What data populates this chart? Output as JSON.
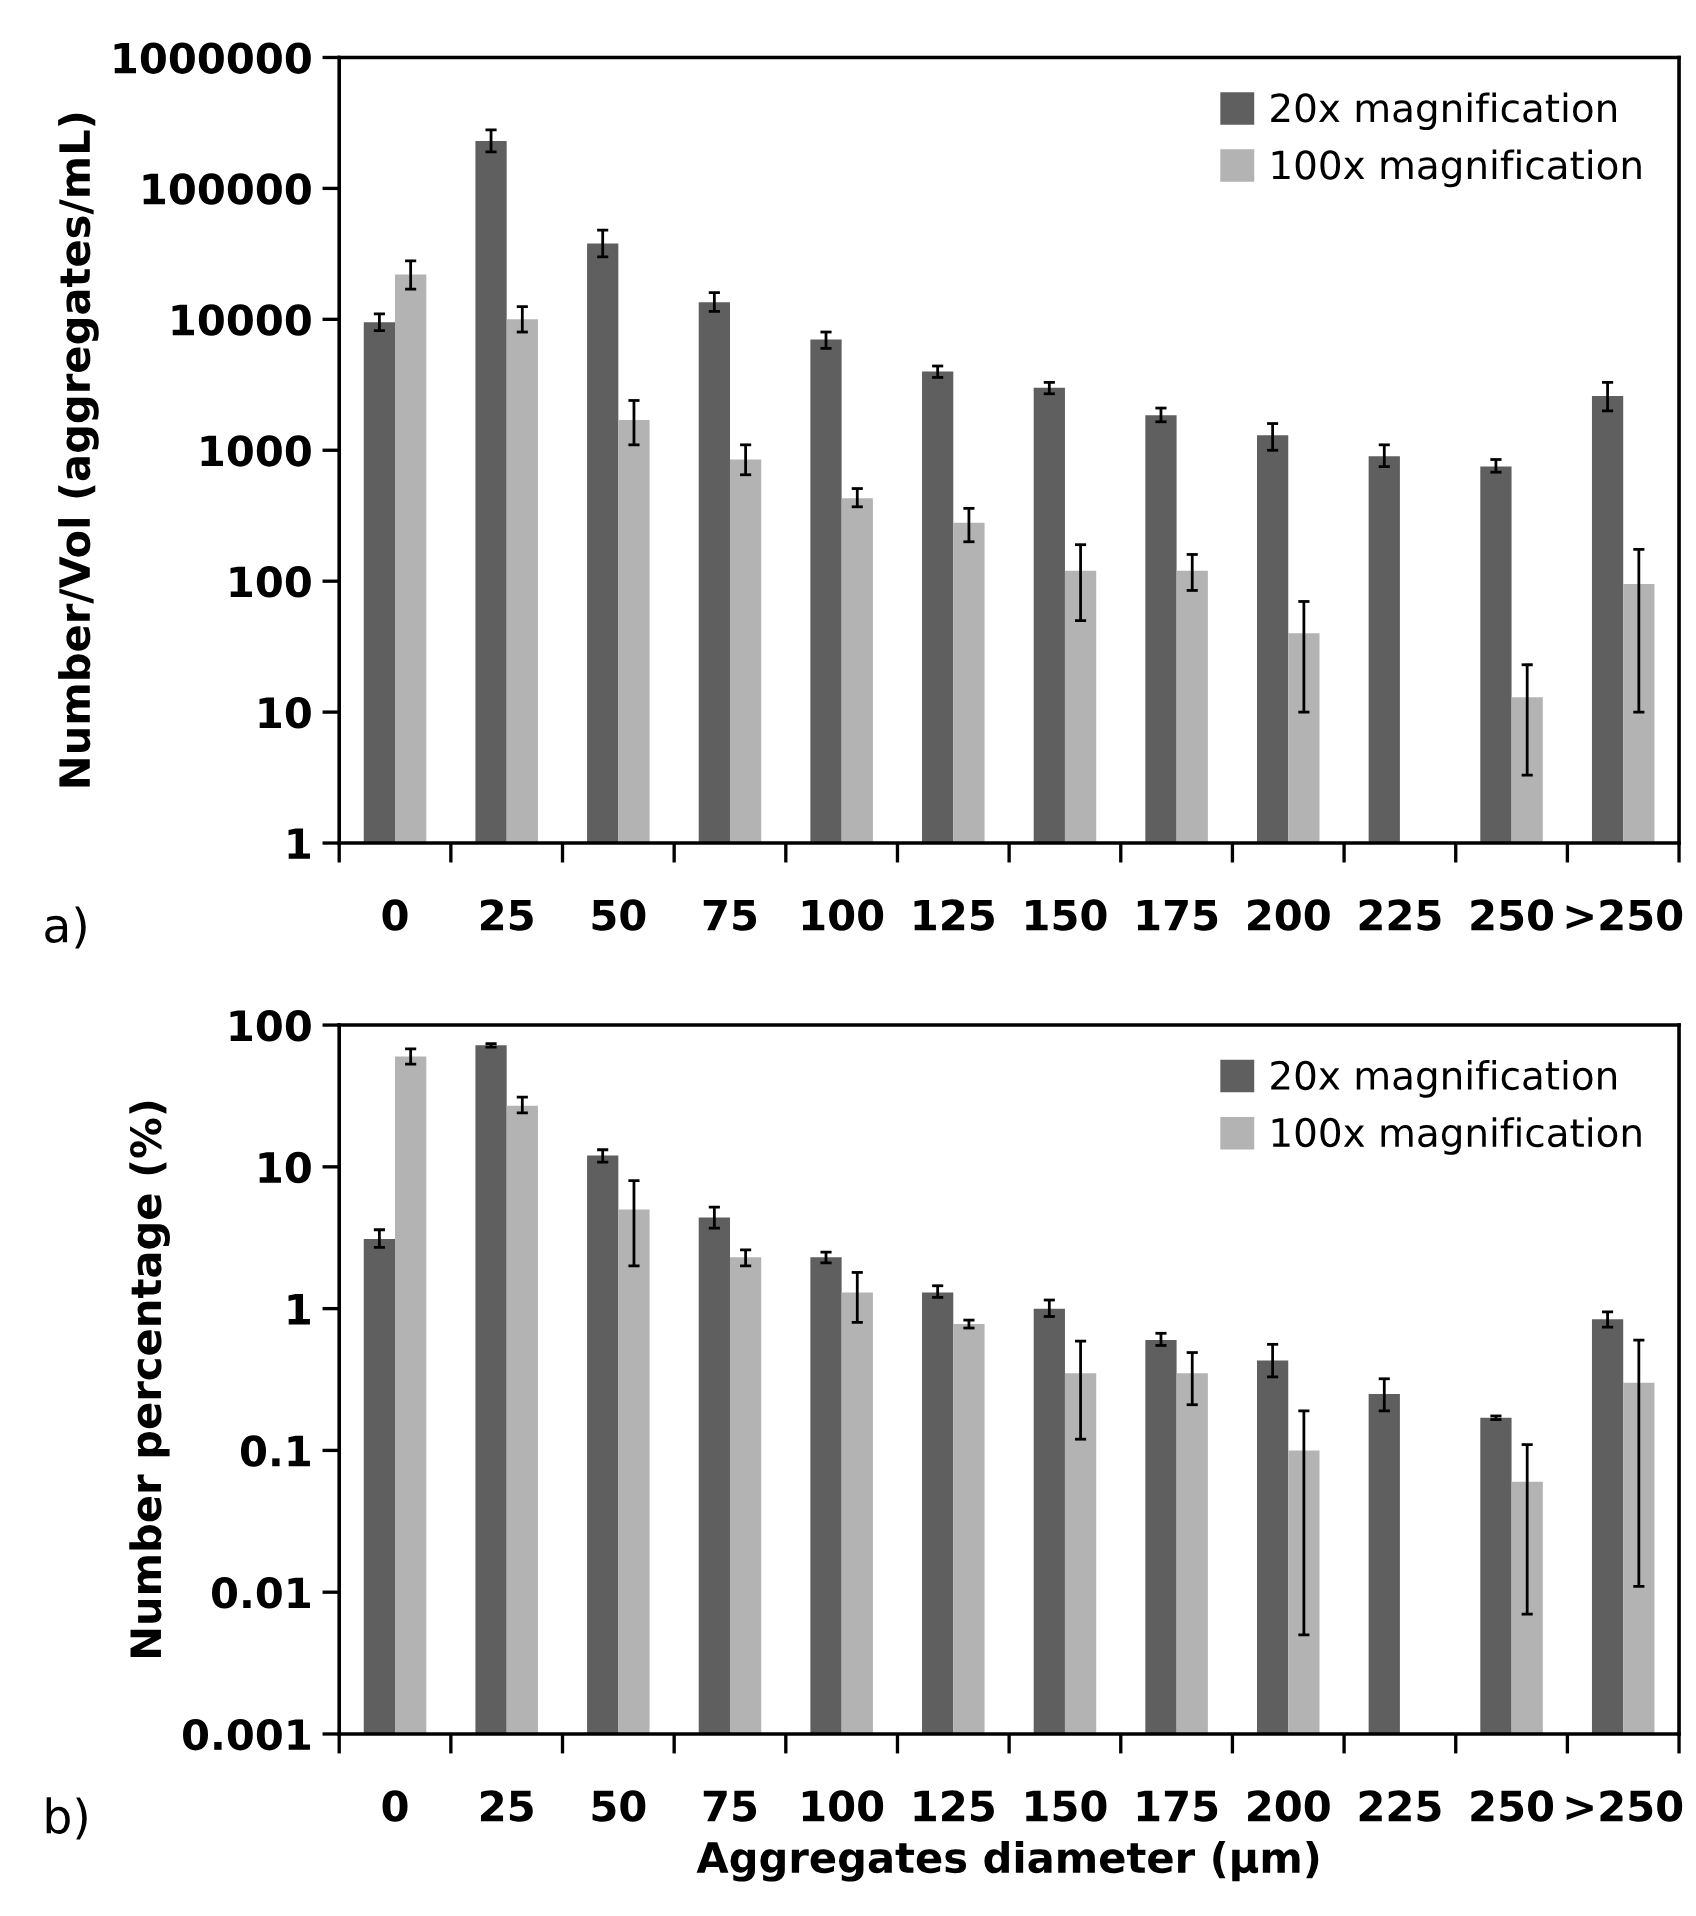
{
  "chart_data": [
    {
      "type": "bar",
      "ylabel": "Number/Vol (aggregates/mL)",
      "annotations": [
        "a)"
      ],
      "log": "y",
      "grid": false,
      "legend": "top right",
      "categories": [
        "0",
        "25",
        "50",
        "75",
        "100",
        "125",
        "150",
        "175",
        "200",
        "225",
        "250",
        ">250"
      ],
      "ylim": [
        1,
        1000000
      ],
      "yticks": [
        1,
        10,
        100,
        1000,
        10000,
        100000,
        1000000
      ],
      "series": [
        {
          "name": "20x magnification",
          "color": "#5f5f5f",
          "values": [
            9500,
            230000,
            38000,
            13500,
            7000,
            4000,
            3000,
            1850,
            1300,
            900,
            750,
            2600
          ],
          "errors": [
            [
              8200,
              11000
            ],
            [
              190000,
              280000
            ],
            [
              30000,
              48000
            ],
            [
              11500,
              16000
            ],
            [
              6000,
              8000
            ],
            [
              3600,
              4400
            ],
            [
              2700,
              3300
            ],
            [
              1650,
              2100
            ],
            [
              1000,
              1600
            ],
            [
              750,
              1100
            ],
            [
              680,
              850
            ],
            [
              2000,
              3300
            ]
          ]
        },
        {
          "name": "100x magnification",
          "color": "#b3b3b3",
          "values": [
            22000,
            10000,
            1700,
            850,
            430,
            280,
            120,
            120,
            40,
            null,
            13,
            95
          ],
          "errors": [
            [
              17000,
              28000
            ],
            [
              8000,
              12500
            ],
            [
              1100,
              2400
            ],
            [
              650,
              1100
            ],
            [
              370,
              510
            ],
            [
              200,
              360
            ],
            [
              50,
              190
            ],
            [
              85,
              160
            ],
            [
              10,
              70
            ],
            null,
            [
              3.3,
              23
            ],
            [
              10,
              175
            ]
          ]
        }
      ]
    },
    {
      "type": "bar",
      "ylabel": "Number percentage (%)",
      "xlabel": "Aggregates diameter (µm)",
      "annotations": [
        "b)"
      ],
      "log": "y",
      "grid": false,
      "legend": "top right",
      "categories": [
        "0",
        "25",
        "50",
        "75",
        "100",
        "125",
        "150",
        "175",
        "200",
        "225",
        "250",
        ">250"
      ],
      "ylim": [
        0.001,
        100
      ],
      "yticks": [
        0.001,
        0.01,
        0.1,
        1,
        10,
        100
      ],
      "series": [
        {
          "name": "20x magnification",
          "color": "#5f5f5f",
          "values": [
            3.1,
            72,
            12,
            4.4,
            2.3,
            1.3,
            1.0,
            0.6,
            0.43,
            0.25,
            0.17,
            0.84
          ],
          "errors": [
            [
              2.7,
              3.6
            ],
            [
              70,
              74
            ],
            [
              10.8,
              13.2
            ],
            [
              3.7,
              5.2
            ],
            [
              2.1,
              2.5
            ],
            [
              1.2,
              1.45
            ],
            [
              0.88,
              1.15
            ],
            [
              0.55,
              0.67
            ],
            [
              0.33,
              0.56
            ],
            [
              0.19,
              0.32
            ],
            [
              0.165,
              0.175
            ],
            [
              0.74,
              0.95
            ]
          ]
        },
        {
          "name": "100x magnification",
          "color": "#b3b3b3",
          "values": [
            60,
            27,
            5,
            2.3,
            1.3,
            0.78,
            0.35,
            0.35,
            0.1,
            null,
            0.06,
            0.3
          ],
          "errors": [
            [
              53,
              68
            ],
            [
              24,
              31
            ],
            [
              2,
              8
            ],
            [
              2.0,
              2.6
            ],
            [
              0.8,
              1.8
            ],
            [
              0.73,
              0.83
            ],
            [
              0.12,
              0.59
            ],
            [
              0.21,
              0.49
            ],
            [
              0.005,
              0.19
            ],
            null,
            [
              0.007,
              0.11
            ],
            [
              0.011,
              0.6
            ]
          ]
        }
      ]
    }
  ]
}
